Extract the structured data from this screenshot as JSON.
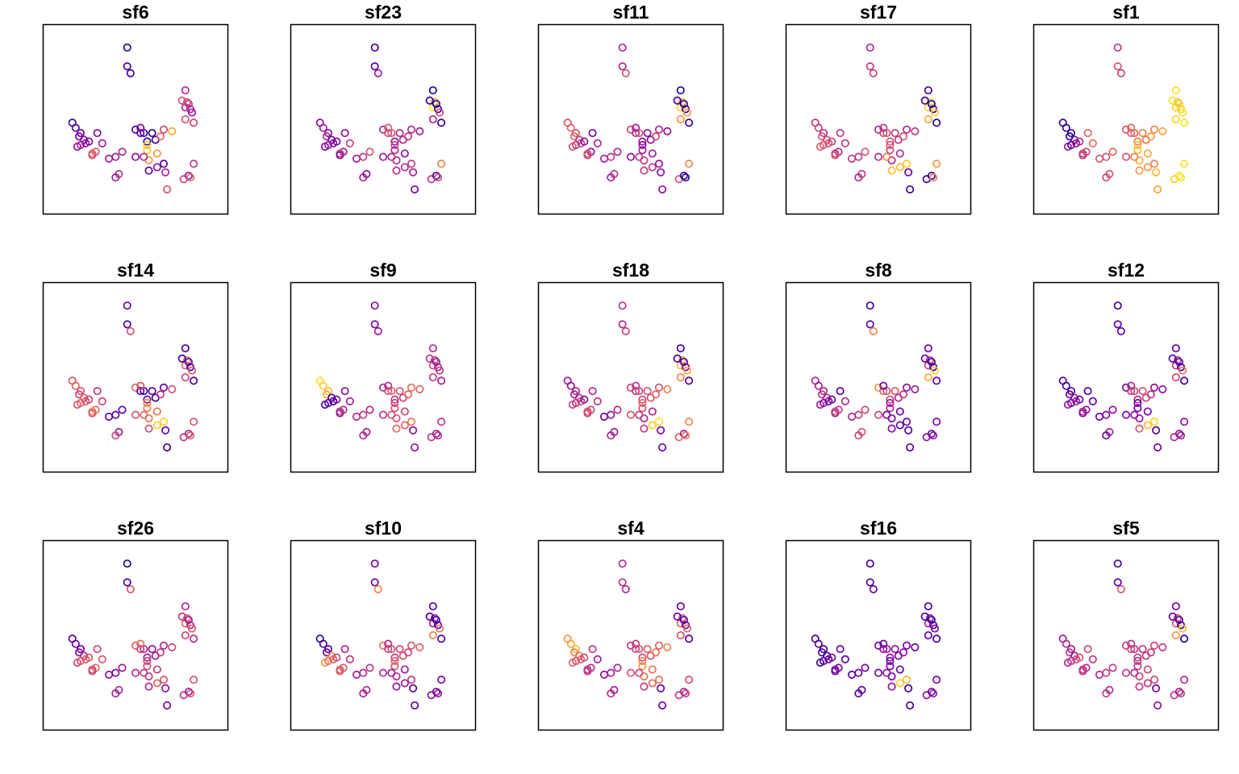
{
  "chart_data": {
    "type": "scatter",
    "layout": "small-multiples 3x5",
    "axes_visible": false,
    "grid": false,
    "legend": "none",
    "marker": "open-circle",
    "colormap": [
      "#0D0887",
      "#4C02A1",
      "#7E03A8",
      "#A92395",
      "#CC4678",
      "#E56B5D",
      "#F89441",
      "#FDC328",
      "#F0F921"
    ],
    "xlim": [
      0,
      100
    ],
    "ylim": [
      0,
      100
    ],
    "x": [
      12,
      14,
      17,
      16,
      19,
      15,
      17,
      20,
      22,
      27,
      30,
      26,
      24,
      24,
      34,
      38,
      42,
      40,
      38,
      45,
      45,
      47,
      50,
      53,
      55,
      57,
      53,
      60,
      62,
      67,
      65,
      72,
      57,
      57,
      63,
      58,
      63,
      50,
      67,
      55,
      69,
      58,
      68,
      79,
      82,
      83,
      85,
      80,
      81,
      80,
      78,
      82,
      83,
      84,
      80,
      85
    ],
    "panels": [
      {
        "title": "sf6",
        "c": [
          0.1,
          0.15,
          0.2,
          0.25,
          0.28,
          0.3,
          0.35,
          0.32,
          0.25,
          0.28,
          0.35,
          0.55,
          0.6,
          0.55,
          0.35,
          0.35,
          0.4,
          0.42,
          0.35,
          0.05,
          0.1,
          0.12,
          0.15,
          0.18,
          0.1,
          0.05,
          0.25,
          0.05,
          0.1,
          0.5,
          0.62,
          0.8,
          0.9,
          0.85,
          0.75,
          0.75,
          0.3,
          0.3,
          0.15,
          0.4,
          0.55,
          0.15,
          0.38,
          0.5,
          0.3,
          0.6,
          0.45,
          0.4,
          0.5,
          0.4,
          0.55,
          0.45,
          0.4,
          0.3,
          0.55,
          0.5
        ]
      },
      {
        "title": "sf23",
        "c": [
          0.3,
          0.35,
          0.3,
          0.4,
          0.2,
          0.25,
          0.35,
          0.3,
          0.25,
          0.3,
          0.5,
          0.35,
          0.45,
          0.3,
          0.35,
          0.45,
          0.55,
          0.3,
          0.35,
          0.1,
          0.15,
          0.35,
          0.4,
          0.5,
          0.55,
          0.3,
          0.55,
          0.4,
          0.4,
          0.4,
          0.45,
          0.35,
          0.4,
          0.45,
          0.3,
          0.4,
          0.4,
          0.35,
          0.45,
          0.4,
          0.25,
          0.4,
          0.35,
          0.45,
          0.1,
          0.5,
          0.7,
          0.95,
          0.8,
          0.05,
          0.05,
          0.05,
          0.1,
          0.5,
          0.4,
          0.1
        ]
      },
      {
        "title": "sf11",
        "c": [
          0.55,
          0.6,
          0.55,
          0.6,
          0.45,
          0.55,
          0.45,
          0.5,
          0.3,
          0.25,
          0.4,
          0.3,
          0.55,
          0.5,
          0.35,
          0.45,
          0.4,
          0.45,
          0.35,
          0.4,
          0.4,
          0.55,
          0.5,
          0.4,
          0.55,
          0.3,
          0.35,
          0.3,
          0.3,
          0.4,
          0.5,
          0.3,
          0.35,
          0.3,
          0.35,
          0.45,
          0.45,
          0.3,
          0.3,
          0.45,
          0.3,
          0.45,
          0.3,
          0.55,
          0.1,
          0.05,
          0.7,
          0.9,
          0.8,
          0.05,
          0.1,
          0.05,
          0.1,
          0.75,
          0.75,
          0.1
        ]
      },
      {
        "title": "sf17",
        "c": [
          0.45,
          0.5,
          0.45,
          0.55,
          0.5,
          0.6,
          0.55,
          0.55,
          0.5,
          0.45,
          0.45,
          0.4,
          0.45,
          0.55,
          0.45,
          0.45,
          0.55,
          0.45,
          0.4,
          0.4,
          0.45,
          0.5,
          0.4,
          0.5,
          0.55,
          0.55,
          0.45,
          0.45,
          0.45,
          0.4,
          0.55,
          0.45,
          0.5,
          0.55,
          0.4,
          0.4,
          0.85,
          0.4,
          0.9,
          0.7,
          0.1,
          0.85,
          0.2,
          0.1,
          0.05,
          0.65,
          0.75,
          0.9,
          0.95,
          0.1,
          0.1,
          0.05,
          0.1,
          0.9,
          0.8,
          0.05
        ]
      },
      {
        "title": "sf1",
        "c": [
          0.1,
          0.05,
          0.1,
          0.05,
          0.2,
          0.35,
          0.15,
          0.3,
          0.4,
          0.6,
          0.62,
          0.5,
          0.5,
          0.45,
          0.55,
          0.55,
          0.6,
          0.55,
          0.5,
          0.45,
          0.55,
          0.5,
          0.55,
          0.6,
          0.6,
          0.65,
          0.6,
          0.7,
          0.65,
          0.7,
          0.75,
          0.8,
          0.85,
          0.85,
          0.8,
          0.8,
          0.75,
          0.55,
          0.7,
          0.7,
          0.8,
          0.75,
          0.85,
          0.9,
          0.95,
          0.95,
          0.95,
          0.9,
          0.85,
          0.95,
          0.95,
          0.9,
          0.9,
          0.95,
          0.9,
          0.95
        ]
      },
      {
        "title": "sf14",
        "c": [
          0.55,
          0.6,
          0.55,
          0.5,
          0.6,
          0.55,
          0.6,
          0.55,
          0.5,
          0.45,
          0.5,
          0.65,
          0.7,
          0.55,
          0.2,
          0.15,
          0.2,
          0.35,
          0.5,
          0.2,
          0.1,
          0.55,
          0.6,
          0.15,
          0.1,
          0.2,
          0.55,
          0.15,
          0.1,
          0.2,
          0.45,
          0.55,
          0.7,
          0.7,
          0.65,
          0.65,
          0.9,
          0.55,
          0.9,
          0.6,
          0.1,
          0.5,
          0.2,
          0.45,
          0.4,
          0.55,
          0.55,
          0.6,
          0.65,
          0.1,
          0.1,
          0.2,
          0.1,
          0.55,
          0.5,
          0.15
        ]
      },
      {
        "title": "sf9",
        "c": [
          0.95,
          0.9,
          0.85,
          0.8,
          0.1,
          0.15,
          0.2,
          0.1,
          0.25,
          0.3,
          0.35,
          0.4,
          0.45,
          0.35,
          0.4,
          0.45,
          0.4,
          0.35,
          0.4,
          0.3,
          0.25,
          0.35,
          0.4,
          0.55,
          0.6,
          0.45,
          0.4,
          0.55,
          0.5,
          0.65,
          0.6,
          0.6,
          0.55,
          0.5,
          0.5,
          0.55,
          0.6,
          0.45,
          0.65,
          0.55,
          0.3,
          0.6,
          0.3,
          0.45,
          0.35,
          0.4,
          0.45,
          0.5,
          0.45,
          0.4,
          0.45,
          0.35,
          0.4,
          0.45,
          0.45,
          0.35
        ]
      },
      {
        "title": "sf18",
        "c": [
          0.35,
          0.3,
          0.4,
          0.35,
          0.4,
          0.5,
          0.45,
          0.5,
          0.3,
          0.4,
          0.45,
          0.5,
          0.55,
          0.5,
          0.2,
          0.3,
          0.4,
          0.35,
          0.4,
          0.45,
          0.4,
          0.5,
          0.5,
          0.45,
          0.5,
          0.5,
          0.45,
          0.55,
          0.55,
          0.55,
          0.6,
          0.7,
          0.55,
          0.6,
          0.4,
          0.4,
          0.9,
          0.55,
          0.95,
          0.45,
          0.2,
          0.45,
          0.25,
          0.6,
          0.35,
          0.65,
          0.7,
          0.85,
          0.75,
          0.1,
          0.1,
          0.15,
          0.2,
          0.8,
          0.7,
          0.15
        ]
      },
      {
        "title": "sf8",
        "c": [
          0.4,
          0.35,
          0.4,
          0.45,
          0.4,
          0.35,
          0.3,
          0.25,
          0.2,
          0.15,
          0.4,
          0.45,
          0.5,
          0.4,
          0.4,
          0.45,
          0.5,
          0.55,
          0.5,
          0.1,
          0.15,
          0.7,
          0.75,
          0.6,
          0.55,
          0.5,
          0.2,
          0.55,
          0.4,
          0.3,
          0.45,
          0.35,
          0.4,
          0.35,
          0.2,
          0.25,
          0.15,
          0.5,
          0.2,
          0.25,
          0.15,
          0.25,
          0.15,
          0.3,
          0.2,
          0.3,
          0.25,
          0.5,
          0.45,
          0.2,
          0.2,
          0.1,
          0.1,
          0.9,
          0.8,
          0.2
        ]
      },
      {
        "title": "sf12",
        "c": [
          0.15,
          0.1,
          0.15,
          0.2,
          0.3,
          0.35,
          0.25,
          0.35,
          0.2,
          0.15,
          0.2,
          0.3,
          0.4,
          0.3,
          0.2,
          0.25,
          0.3,
          0.35,
          0.2,
          0.1,
          0.15,
          0.2,
          0.25,
          0.45,
          0.5,
          0.4,
          0.4,
          0.55,
          0.5,
          0.3,
          0.45,
          0.3,
          0.25,
          0.2,
          0.25,
          0.3,
          0.85,
          0.25,
          0.9,
          0.3,
          0.2,
          0.55,
          0.15,
          0.4,
          0.3,
          0.35,
          0.3,
          0.45,
          0.4,
          0.2,
          0.15,
          0.15,
          0.1,
          0.65,
          0.5,
          0.1
        ]
      },
      {
        "title": "sf26",
        "c": [
          0.15,
          0.2,
          0.25,
          0.3,
          0.4,
          0.5,
          0.55,
          0.6,
          0.55,
          0.5,
          0.55,
          0.6,
          0.55,
          0.5,
          0.3,
          0.25,
          0.35,
          0.4,
          0.35,
          0.05,
          0.1,
          0.55,
          0.6,
          0.5,
          0.4,
          0.35,
          0.6,
          0.3,
          0.35,
          0.4,
          0.45,
          0.5,
          0.55,
          0.5,
          0.45,
          0.45,
          0.6,
          0.4,
          0.55,
          0.45,
          0.25,
          0.4,
          0.3,
          0.45,
          0.35,
          0.5,
          0.55,
          0.6,
          0.55,
          0.4,
          0.45,
          0.35,
          0.4,
          0.55,
          0.5,
          0.4
        ]
      },
      {
        "title": "sf10",
        "c": [
          0.05,
          0.1,
          0.15,
          0.2,
          0.7,
          0.75,
          0.65,
          0.6,
          0.5,
          0.4,
          0.45,
          0.55,
          0.6,
          0.55,
          0.35,
          0.4,
          0.45,
          0.4,
          0.35,
          0.25,
          0.2,
          0.7,
          0.65,
          0.5,
          0.55,
          0.45,
          0.4,
          0.5,
          0.55,
          0.55,
          0.5,
          0.6,
          0.55,
          0.6,
          0.35,
          0.4,
          0.35,
          0.4,
          0.45,
          0.35,
          0.15,
          0.3,
          0.15,
          0.3,
          0.25,
          0.3,
          0.25,
          0.35,
          0.3,
          0.15,
          0.15,
          0.1,
          0.15,
          0.65,
          0.7,
          0.15
        ]
      },
      {
        "title": "sf4",
        "c": [
          0.75,
          0.8,
          0.85,
          0.7,
          0.65,
          0.6,
          0.55,
          0.6,
          0.5,
          0.45,
          0.35,
          0.4,
          0.45,
          0.45,
          0.3,
          0.35,
          0.4,
          0.35,
          0.4,
          0.4,
          0.45,
          0.4,
          0.45,
          0.5,
          0.55,
          0.5,
          0.45,
          0.6,
          0.55,
          0.6,
          0.65,
          0.7,
          0.75,
          0.7,
          0.65,
          0.65,
          0.6,
          0.55,
          0.65,
          0.5,
          0.2,
          0.45,
          0.2,
          0.45,
          0.4,
          0.45,
          0.5,
          0.6,
          0.55,
          0.2,
          0.2,
          0.15,
          0.2,
          0.6,
          0.55,
          0.15
        ]
      },
      {
        "title": "sf16",
        "c": [
          0.1,
          0.15,
          0.1,
          0.15,
          0.05,
          0.1,
          0.15,
          0.2,
          0.25,
          0.2,
          0.15,
          0.25,
          0.3,
          0.2,
          0.15,
          0.2,
          0.25,
          0.2,
          0.15,
          0.1,
          0.15,
          0.2,
          0.25,
          0.3,
          0.35,
          0.3,
          0.2,
          0.3,
          0.25,
          0.25,
          0.3,
          0.2,
          0.25,
          0.2,
          0.2,
          0.25,
          0.9,
          0.2,
          0.85,
          0.3,
          0.1,
          0.3,
          0.1,
          0.3,
          0.2,
          0.3,
          0.25,
          0.35,
          0.3,
          0.1,
          0.1,
          0.1,
          0.15,
          0.25,
          0.2,
          0.1
        ]
      },
      {
        "title": "sf5",
        "c": [
          0.35,
          0.4,
          0.35,
          0.45,
          0.3,
          0.4,
          0.45,
          0.5,
          0.55,
          0.5,
          0.45,
          0.4,
          0.45,
          0.45,
          0.4,
          0.45,
          0.45,
          0.4,
          0.45,
          0.1,
          0.15,
          0.55,
          0.5,
          0.5,
          0.45,
          0.45,
          0.45,
          0.45,
          0.45,
          0.5,
          0.45,
          0.45,
          0.45,
          0.45,
          0.5,
          0.5,
          0.45,
          0.45,
          0.5,
          0.4,
          0.3,
          0.45,
          0.25,
          0.45,
          0.35,
          0.45,
          0.4,
          0.55,
          0.5,
          0.25,
          0.2,
          0.15,
          0.1,
          0.85,
          0.75,
          0.05
        ]
      }
    ],
    "y": [
      48,
      45,
      42,
      40,
      38,
      34,
      35,
      36,
      37,
      42,
      36,
      31,
      30,
      29,
      27,
      28,
      31,
      18,
      16,
      92,
      81,
      77,
      44,
      42,
      42,
      37,
      45,
      42,
      38,
      44,
      40,
      43,
      32,
      35,
      30,
      26,
      22,
      28,
      24,
      28,
      9,
      20,
      19,
      15,
      17,
      16,
      24,
      57,
      60,
      67,
      61,
      59,
      56,
      54,
      50,
      48
    ]
  }
}
